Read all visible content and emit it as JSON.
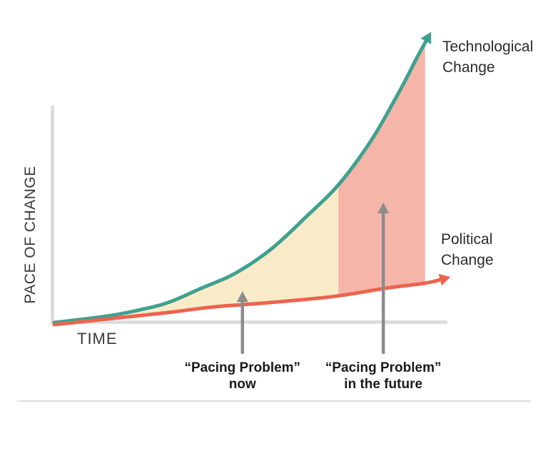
{
  "labels": {
    "technological_line1": "Technological",
    "technological_line2": "Change",
    "political_line1": "Political",
    "political_line2": "Change"
  },
  "colors": {
    "technological_curve": "#3FA190",
    "political_curve": "#EB6450",
    "now_region_fill": "#FAEBC8",
    "future_region_fill": "#F6B5A9",
    "axis_gray": "#DCDCDC",
    "arrow_gray": "#8C8C8C",
    "divider_gray": "#DDDDDD",
    "text_dark": "#2B2B2B"
  },
  "chart_data": {
    "type": "line",
    "title": "",
    "xlabel": "TIME",
    "ylabel": "PACE OF CHANGE",
    "x_axis_ticks": [],
    "y_axis_ticks": [],
    "grid": "off",
    "legend": "inline labels at arrow ends",
    "series": [
      {
        "name": "Technological Change",
        "color": "#3FA190",
        "shape": "exponential growth, ends in up-right arrow",
        "points": [
          [
            0,
            0
          ],
          [
            0.134,
            0.022
          ],
          [
            0.217,
            0.043
          ],
          [
            0.289,
            0.068
          ],
          [
            0.369,
            0.114
          ],
          [
            0.459,
            0.167
          ],
          [
            0.55,
            0.249
          ],
          [
            0.64,
            0.36
          ],
          [
            0.722,
            0.469
          ],
          [
            0.803,
            0.616
          ],
          [
            0.875,
            0.783
          ],
          [
            0.919,
            0.896
          ],
          [
            0.942,
            0.952
          ]
        ]
      },
      {
        "name": "Political Change",
        "color": "#EB6450",
        "shape": "slow near-linear growth, ends in right arrow",
        "points": [
          [
            0,
            -0.007
          ],
          [
            0.134,
            0.012
          ],
          [
            0.289,
            0.034
          ],
          [
            0.405,
            0.053
          ],
          [
            0.55,
            0.068
          ],
          [
            0.712,
            0.089
          ],
          [
            0.839,
            0.116
          ],
          [
            0.938,
            0.133
          ],
          [
            0.978,
            0.145
          ]
        ]
      }
    ],
    "regions": [
      {
        "name": "gap between curves now",
        "fill": "#FAEBC8",
        "from_t": 0,
        "to_t": 0.72
      },
      {
        "name": "gap between curves in the future",
        "fill": "#F6B5A9",
        "from_t": 0.72,
        "to_t": 0.94
      }
    ],
    "annotations": [
      {
        "text_line1": "“Pacing Problem”",
        "text_line2": "now",
        "t": 0.477,
        "arrow_from_v": -0.106,
        "arrow_to_v": 0.106
      },
      {
        "text_line1": "“Pacing Problem”",
        "text_line2": "in the future",
        "t": 0.834,
        "arrow_from_v": -0.106,
        "arrow_to_v": 0.406
      }
    ]
  }
}
